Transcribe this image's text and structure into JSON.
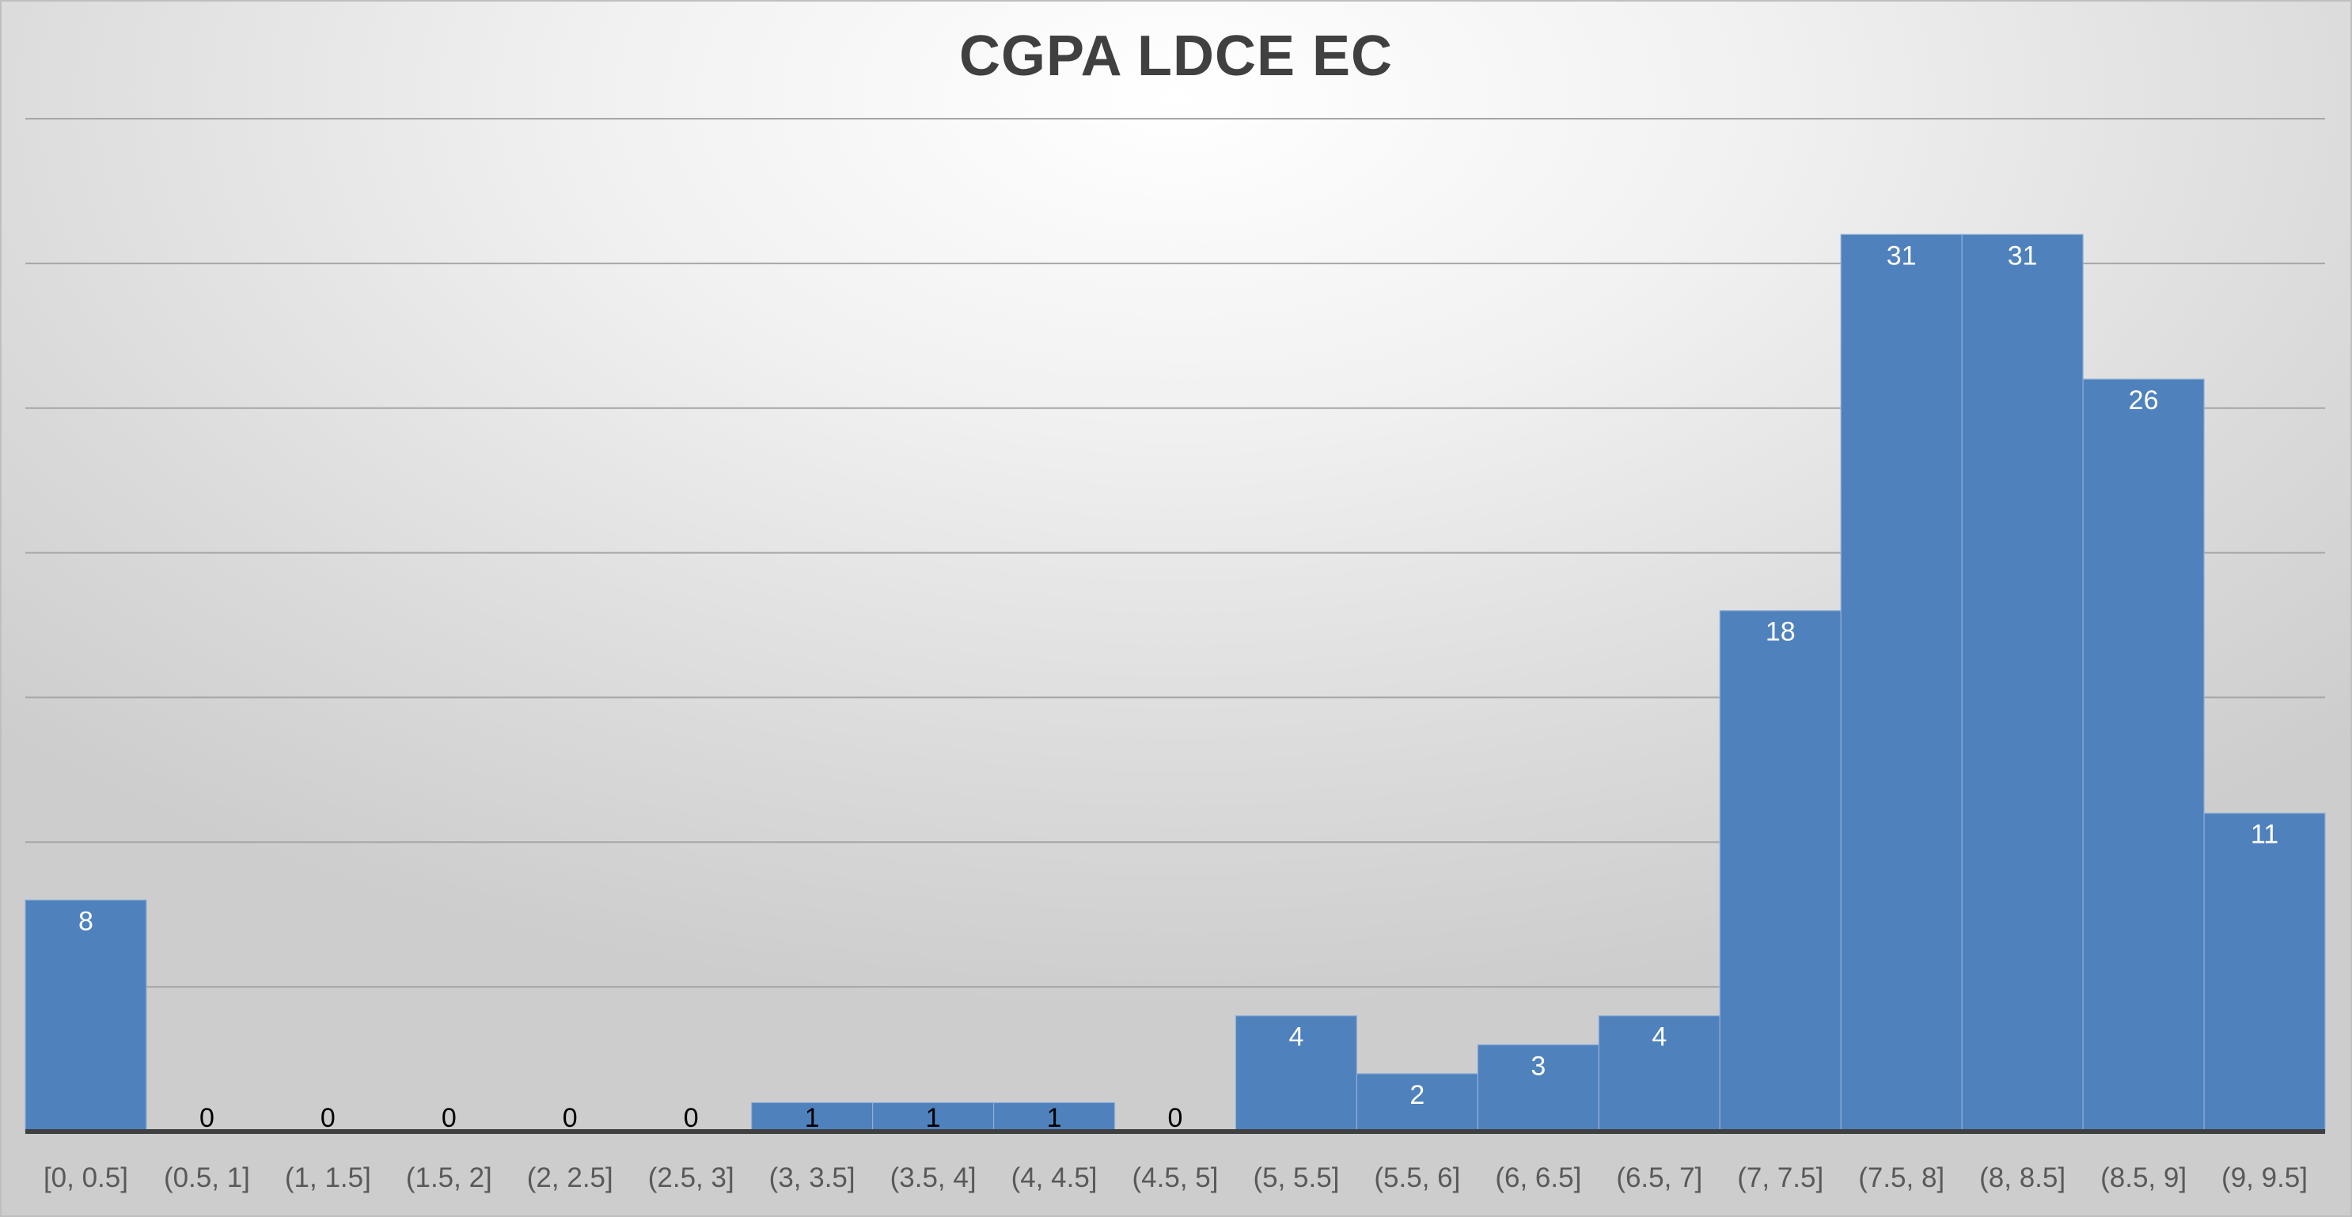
{
  "chart_data": {
    "type": "bar",
    "title": "CGPA LDCE EC",
    "xlabel": "",
    "ylabel": "",
    "categories": [
      "[0, 0.5]",
      "(0.5, 1]",
      "(1, 1.5]",
      "(1.5, 2]",
      "(2, 2.5]",
      "(2.5, 3]",
      "(3, 3.5]",
      "(3.5, 4]",
      "(4, 4.5]",
      "(4.5, 5]",
      "(5, 5.5]",
      "(5.5, 6]",
      "(6, 6.5]",
      "(6.5, 7]",
      "(7, 7.5]",
      "(7.5, 8]",
      "(8, 8.5]",
      "(8.5, 9]",
      "(9, 9.5]"
    ],
    "values": [
      8,
      0,
      0,
      0,
      0,
      0,
      1,
      1,
      1,
      0,
      4,
      2,
      3,
      4,
      18,
      31,
      31,
      26,
      11
    ],
    "ylim": [
      0,
      35
    ],
    "grid_step": 5,
    "grid": true,
    "legend": "none",
    "data_labels": true,
    "bar_color": "#4f81bd",
    "gridline_color": "#a6a6a6",
    "axis_color": "#404040"
  }
}
